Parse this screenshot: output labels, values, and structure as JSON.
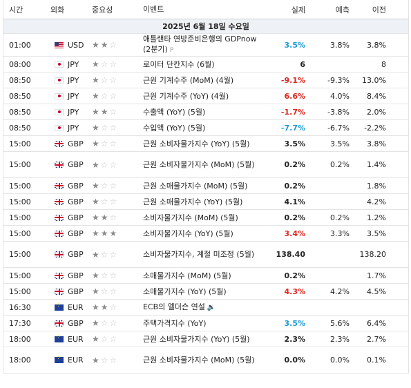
{
  "header": {
    "time": "시간",
    "currency": "외화",
    "importance": "중요성",
    "event": "이벤트",
    "actual": "실제",
    "forecast": "예측",
    "previous": "이전"
  },
  "date_label": "2025년 6월 18일 수요일",
  "icons": {
    "star_filled": "★",
    "star_empty": "☆",
    "preliminary_tag": "P",
    "speech_icon": "speaker-icon"
  },
  "colors": {
    "positive": "#1e9bd7",
    "negative": "#e0261f"
  },
  "events": [
    {
      "time": "01:00",
      "cur": "USD",
      "imp": 2,
      "event": "애틀랜타 연방준비은행의 GDPnow (2분기)",
      "tag": "P",
      "actual": "3.5%",
      "actual_color": "pos",
      "forecast": "3.8%",
      "previous": "3.8%",
      "h": 33
    },
    {
      "time": "08:00",
      "cur": "JPY",
      "imp": 1,
      "event": "로이터 단칸지수 (6월)",
      "actual": "6",
      "actual_color": "",
      "forecast": "",
      "previous": "8",
      "h": 23
    },
    {
      "time": "08:50",
      "cur": "JPY",
      "imp": 1,
      "event": "근원 기계수주 (MoM) (4월)",
      "actual": "-9.1%",
      "actual_color": "neg",
      "forecast": "-9.3%",
      "previous": "13.0%",
      "h": 23
    },
    {
      "time": "08:50",
      "cur": "JPY",
      "imp": 1,
      "event": "근원 기계수주 (YoY) (4월)",
      "actual": "6.6%",
      "actual_color": "neg",
      "forecast": "4.0%",
      "previous": "8.4%",
      "h": 23
    },
    {
      "time": "08:50",
      "cur": "JPY",
      "imp": 2,
      "event": "수출액 (YoY) (5월)",
      "actual": "-1.7%",
      "actual_color": "neg",
      "forecast": "-3.8%",
      "previous": "2.0%",
      "h": 23
    },
    {
      "time": "08:50",
      "cur": "JPY",
      "imp": 1,
      "event": "수입액 (YoY) (5월)",
      "actual": "-7.7%",
      "actual_color": "pos",
      "forecast": "-6.7%",
      "previous": "-2.2%",
      "h": 23
    },
    {
      "time": "15:00",
      "cur": "GBP",
      "imp": 1,
      "event": "근원 소비자물가지수 (YoY) (5월)",
      "actual": "3.5%",
      "actual_color": "",
      "forecast": "3.5%",
      "previous": "3.8%",
      "h": 23
    },
    {
      "time": "15:00",
      "cur": "GBP",
      "imp": 1,
      "event": "근원 소비자물가지수 (MoM) (5월)",
      "actual": "0.2%",
      "actual_color": "",
      "forecast": "0.2%",
      "previous": "1.4%",
      "h": 38
    },
    {
      "time": "15:00",
      "cur": "GBP",
      "imp": 1,
      "event": "근원 소매물가지수 (MoM) (5월)",
      "actual": "0.2%",
      "actual_color": "",
      "forecast": "",
      "previous": "1.8%",
      "h": 23
    },
    {
      "time": "15:00",
      "cur": "GBP",
      "imp": 1,
      "event": "근원 소매물가지수 (YoY) (5월)",
      "actual": "4.1%",
      "actual_color": "",
      "forecast": "",
      "previous": "4.2%",
      "h": 23
    },
    {
      "time": "15:00",
      "cur": "GBP",
      "imp": 2,
      "event": "소비자물가지수 (MoM) (5월)",
      "actual": "0.2%",
      "actual_color": "",
      "forecast": "0.2%",
      "previous": "1.2%",
      "h": 23
    },
    {
      "time": "15:00",
      "cur": "GBP",
      "imp": 3,
      "event": "소비자물가지수 (YoY) (5월)",
      "actual": "3.4%",
      "actual_color": "neg",
      "forecast": "3.3%",
      "previous": "3.5%",
      "h": 23
    },
    {
      "time": "15:00",
      "cur": "GBP",
      "imp": 1,
      "event": "소비자물가지수, 계절 미조정 (5월)",
      "actual": "138.40",
      "actual_color": "",
      "forecast": "",
      "previous": "138.20",
      "h": 38
    },
    {
      "time": "15:00",
      "cur": "GBP",
      "imp": 1,
      "event": "소매물가지수 (MoM) (5월)",
      "actual": "0.2%",
      "actual_color": "",
      "forecast": "",
      "previous": "1.7%",
      "h": 23
    },
    {
      "time": "15:00",
      "cur": "GBP",
      "imp": 1,
      "event": "소매물가지수 (YoY) (5월)",
      "actual": "4.3%",
      "actual_color": "neg",
      "forecast": "4.2%",
      "previous": "4.5%",
      "h": 23
    },
    {
      "time": "16:30",
      "cur": "EUR",
      "imp": 2,
      "event": "ECB의 엘더슨 연설",
      "speech": true,
      "actual": "",
      "actual_color": "",
      "forecast": "",
      "previous": "",
      "h": 23
    },
    {
      "time": "17:30",
      "cur": "GBP",
      "imp": 1,
      "event": "주택가격지수 (YoY)",
      "actual": "3.5%",
      "actual_color": "pos",
      "forecast": "5.6%",
      "previous": "6.4%",
      "h": 23
    },
    {
      "time": "18:00",
      "cur": "EUR",
      "imp": 1,
      "event": "근원 소비자물가지수 (YoY) (5월)",
      "actual": "2.3%",
      "actual_color": "",
      "forecast": "2.3%",
      "previous": "2.7%",
      "h": 23
    },
    {
      "time": "18:00",
      "cur": "EUR",
      "imp": 1,
      "event": "근원 소비자물가지수 (MoM) (5월)",
      "actual": "0.0%",
      "actual_color": "",
      "forecast": "0.0%",
      "previous": "0.1%",
      "h": 38
    }
  ]
}
